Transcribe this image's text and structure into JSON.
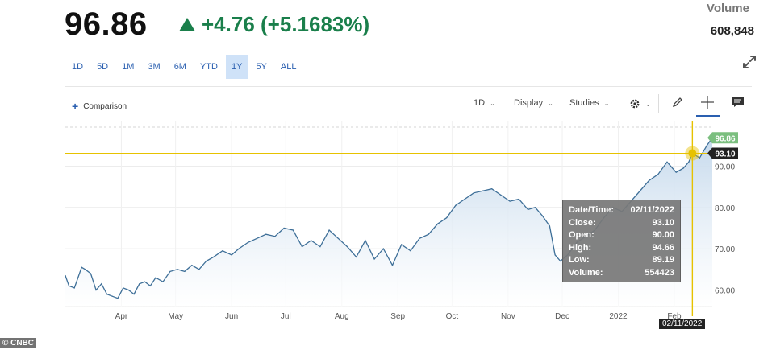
{
  "quote": {
    "price": "96.86",
    "change": "+4.76 (+5.1683%)",
    "volume_label": "Volume",
    "volume_value": "608,848",
    "up_color": "#1a7f4b"
  },
  "ranges": [
    "1D",
    "5D",
    "1M",
    "3M",
    "6M",
    "YTD",
    "1Y",
    "5Y",
    "ALL"
  ],
  "active_range": "1Y",
  "toolbar": {
    "comparison_label": "Comparison",
    "interval_label": "1D",
    "display_label": "Display",
    "studies_label": "Studies",
    "icons": [
      "gear-icon",
      "pencil-icon",
      "crosshair-icon",
      "comment-icon"
    ]
  },
  "chart_data": {
    "type": "area",
    "x": [
      "2021-03-01",
      "2021-03-03",
      "2021-03-06",
      "2021-03-08",
      "2021-03-10",
      "2021-03-12",
      "2021-03-15",
      "2021-03-18",
      "2021-03-21",
      "2021-03-24",
      "2021-03-27",
      "2021-03-30",
      "2021-04-02",
      "2021-04-05",
      "2021-04-08",
      "2021-04-11",
      "2021-04-14",
      "2021-04-17",
      "2021-04-20",
      "2021-04-24",
      "2021-04-28",
      "2021-05-02",
      "2021-05-06",
      "2021-05-10",
      "2021-05-14",
      "2021-05-18",
      "2021-05-22",
      "2021-05-27",
      "2021-06-01",
      "2021-06-05",
      "2021-06-10",
      "2021-06-15",
      "2021-06-20",
      "2021-06-25",
      "2021-06-30",
      "2021-07-05",
      "2021-07-10",
      "2021-07-15",
      "2021-07-20",
      "2021-07-25",
      "2021-07-30",
      "2021-08-04",
      "2021-08-09",
      "2021-08-14",
      "2021-08-19",
      "2021-08-24",
      "2021-08-29",
      "2021-09-03",
      "2021-09-08",
      "2021-09-13",
      "2021-09-18",
      "2021-09-23",
      "2021-09-28",
      "2021-10-03",
      "2021-10-08",
      "2021-10-13",
      "2021-10-18",
      "2021-10-23",
      "2021-10-28",
      "2021-11-02",
      "2021-11-07",
      "2021-11-12",
      "2021-11-16",
      "2021-11-20",
      "2021-11-24",
      "2021-11-27",
      "2021-11-30",
      "2021-12-04",
      "2021-12-09",
      "2021-12-14",
      "2021-12-19",
      "2021-12-24",
      "2021-12-29",
      "2022-01-03",
      "2022-01-08",
      "2022-01-13",
      "2022-01-18",
      "2022-01-23",
      "2022-01-28",
      "2022-02-02",
      "2022-02-06",
      "2022-02-09",
      "2022-02-11",
      "2022-02-15",
      "2022-02-19",
      "2022-02-22"
    ],
    "values": [
      63.5,
      61.0,
      60.5,
      63.0,
      65.5,
      65.0,
      64.0,
      60.0,
      61.5,
      59.0,
      58.5,
      58.0,
      60.5,
      60.0,
      59.0,
      61.5,
      62.0,
      61.0,
      63.0,
      62.0,
      64.5,
      65.0,
      64.5,
      66.0,
      65.0,
      67.0,
      68.0,
      69.5,
      68.5,
      70.0,
      71.5,
      72.5,
      73.5,
      73.0,
      75.0,
      74.5,
      70.5,
      72.0,
      70.5,
      74.5,
      72.5,
      70.5,
      68.0,
      72.0,
      67.5,
      70.0,
      66.0,
      71.0,
      69.5,
      72.5,
      73.5,
      76.0,
      77.5,
      80.5,
      82.0,
      83.5,
      84.0,
      84.5,
      83.0,
      81.5,
      82.0,
      79.5,
      80.0,
      78.0,
      75.5,
      68.5,
      67.0,
      68.5,
      71.5,
      73.0,
      74.5,
      77.5,
      80.0,
      79.0,
      81.5,
      84.0,
      86.5,
      88.0,
      91.0,
      88.5,
      89.5,
      91.0,
      93.1,
      92.0,
      95.0,
      96.86
    ],
    "x_ticks": [
      "Apr",
      "May",
      "Jun",
      "Jul",
      "Aug",
      "Sep",
      "Oct",
      "Nov",
      "Dec",
      "2022",
      "Feb"
    ],
    "y_ticks": [
      "60.00",
      "70.00",
      "80.00",
      "90.00"
    ],
    "ylim": [
      56,
      101
    ],
    "last_value_tag": "96.86",
    "cursor_value_tag": "93.10",
    "cursor_date_tag": "02/11/2022",
    "line_color": "#3e6f98",
    "fill_color": "#c5d9ec",
    "crosshair_color": "#e6c200",
    "tooltip": [
      {
        "label": "Date/Time:",
        "value": "02/11/2022"
      },
      {
        "label": "Close:",
        "value": "93.10"
      },
      {
        "label": "Open:",
        "value": "90.00"
      },
      {
        "label": "High:",
        "value": "94.66"
      },
      {
        "label": "Low:",
        "value": "89.19"
      },
      {
        "label": "Volume:",
        "value": "554423"
      }
    ]
  },
  "watermark": "© CNBC"
}
